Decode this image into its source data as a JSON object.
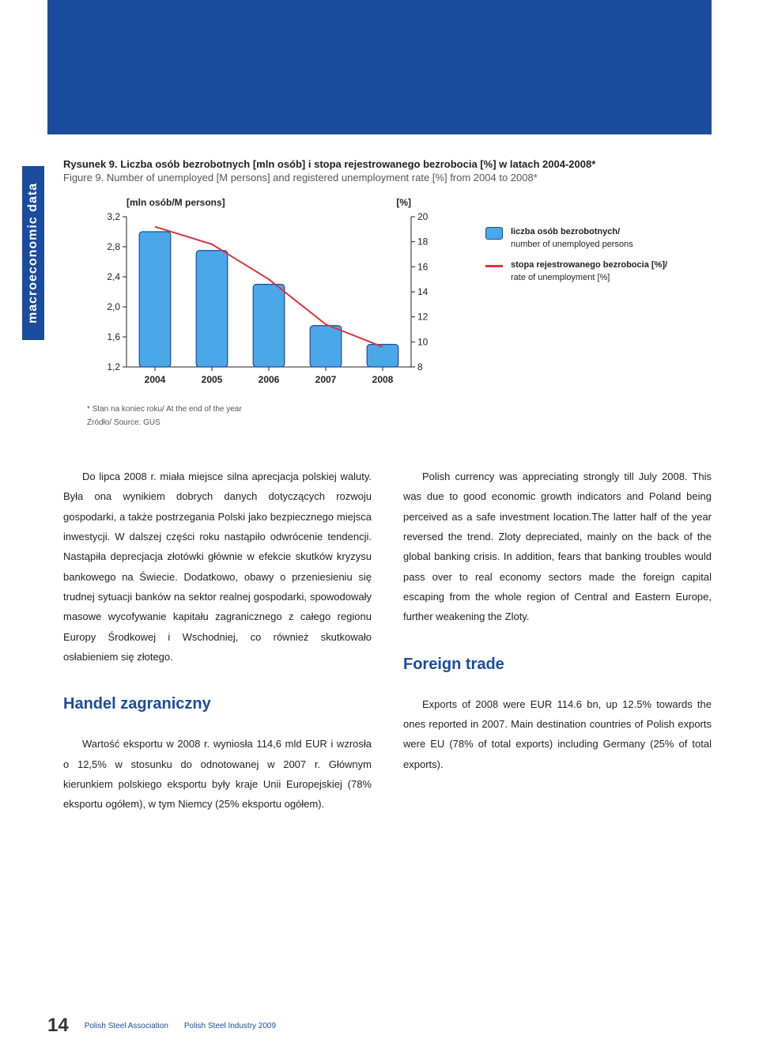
{
  "sidebar_label": "macroeconomic data",
  "figure": {
    "title_pl": "Rysunek 9. Liczba osób bezrobotnych [mln osób] i stopa rejestrowanego bezrobocia [%] w latach 2004-2008*",
    "title_en": "Figure 9. Number of unemployed [M persons] and registered unemployment rate [%] from 2004 to 2008*",
    "footnote": "* Stan na koniec roku/ At the end of the year",
    "source": "Źródło/ Source: GUS"
  },
  "chart": {
    "type": "bar-line-combo",
    "left_axis_label": "[mln osób/M persons]",
    "right_axis_label": "[%]",
    "categories": [
      "2004",
      "2005",
      "2006",
      "2007",
      "2008"
    ],
    "left_ticks": [
      "3,2",
      "2,8",
      "2,4",
      "2,0",
      "1,6",
      "1,2"
    ],
    "left_min": 1.2,
    "left_max": 3.2,
    "right_ticks": [
      "20",
      "18",
      "16",
      "14",
      "12",
      "10",
      "8"
    ],
    "right_min": 8,
    "right_max": 20,
    "bar_values": [
      3.0,
      2.75,
      2.3,
      1.75,
      1.5
    ],
    "line_values": [
      19.2,
      17.8,
      15.0,
      11.4,
      9.6
    ],
    "bar_fill": "#4aa8e8",
    "bar_stroke": "#1b4b9c",
    "line_color": "#d9333d",
    "grid_color": "#b9c9e2",
    "bg": "#ffffff",
    "axis_font": 12
  },
  "legend": {
    "box_pl": "liczba osób bezrobotnych/",
    "box_en": "number of unemployed persons",
    "line_pl": "stopa rejestrowanego bezrobocia [%]/",
    "line_en": "rate of unemployment [%]"
  },
  "body": {
    "left_p1": "Do lipca 2008 r. miała miejsce silna aprecjacja polskiej waluty. Była ona wynikiem dobrych danych dotyczących rozwoju gospodarki, a także postrzegania Polski jako bezpiecznego miejsca inwestycji. W dalszej części roku nastąpiło odwrócenie tendencji. Nastąpiła deprecjacja złotówki głównie w efekcie skutków kryzysu bankowego na Świecie. Dodatkowo, obawy o przeniesieniu się trudnej sytuacji banków na sektor realnej gospodarki, spowodowały masowe wycofywanie kapitału zagranicznego z całego regionu Europy Środkowej i Wschodniej, co również skutkowało osłabieniem się złotego.",
    "right_p1": "Polish currency was appreciating strongly till July 2008. This was due to good economic growth indicators and Poland being perceived as a safe investment location.The latter half of the year reversed the trend. Zloty depreciated, mainly on the back of the global banking crisis. In addition, fears that banking troubles would pass over to real economy sectors made the foreign capital escaping from the whole region of Central and Eastern Europe, further weakening the Zloty.",
    "left_h": "Handel zagraniczny",
    "right_h": "Foreign trade",
    "left_p2": "Wartość eksportu w 2008 r. wyniosła 114,6 mld EUR i wzrosła o 12,5% w stosunku do odnotowanej w 2007 r. Głównym kierunkiem polskiego eksportu były kraje Unii Europejskiej (78% eksportu ogółem), w tym Niemcy (25% eksportu ogółem).",
    "right_p2": "Exports of 2008 were EUR 114.6 bn, up 12.5% towards the ones reported in 2007. Main destination countries of Polish exports were EU (78% of total exports) including Germany (25% of total exports)."
  },
  "footer": {
    "page": "14",
    "assoc": "Polish Steel Association",
    "report": "Polish Steel Industry 2009"
  }
}
